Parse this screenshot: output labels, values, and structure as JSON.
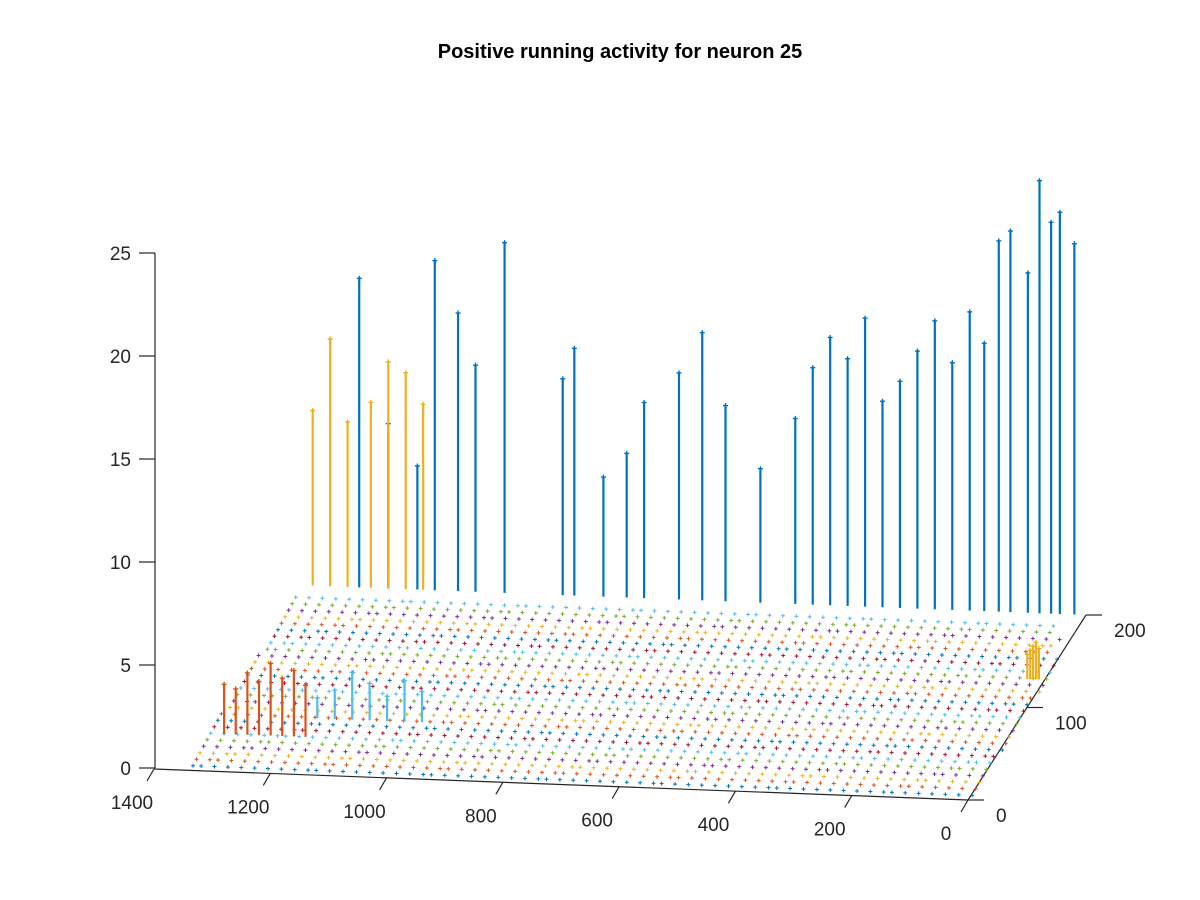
{
  "chart_data": {
    "type": "3d-stem",
    "title": "Positive running activity for neuron 25",
    "xlabel": "",
    "ylabel": "",
    "zlabel": "",
    "x_range": [
      0,
      1400
    ],
    "y_range": [
      0,
      200
    ],
    "z_range": [
      0,
      25
    ],
    "x_ticks": [
      0,
      200,
      400,
      600,
      800,
      1000,
      1200,
      1400
    ],
    "y_ticks": [
      0,
      100,
      200
    ],
    "z_ticks": [
      0,
      5,
      10,
      15,
      20,
      25
    ],
    "grid": false,
    "legend": "none",
    "colors": [
      "#0072BD",
      "#D95319",
      "#EDB120",
      "#7E2F8E",
      "#77AC30",
      "#4DBEEE",
      "#A2142F"
    ],
    "series": [
      {
        "color_index": 0,
        "y": 200,
        "x": [
          20,
          45,
          60,
          80,
          100,
          130,
          150,
          175,
          200,
          230,
          260,
          290,
          320,
          350,
          380,
          410,
          440,
          470,
          500,
          560,
          620,
          660,
          700,
          760,
          790,
          830,
          880,
          900,
          1000,
          1050,
          1080,
          1120,
          1150,
          1200,
          1250
        ],
        "z": [
          18,
          19.5,
          19,
          21,
          16.5,
          18.5,
          18,
          13,
          14.5,
          12,
          14,
          12.5,
          11,
          10,
          14,
          12,
          13,
          11.5,
          9,
          6.5,
          9.5,
          13,
          11,
          9.5,
          7,
          5.8,
          12,
          10.5,
          17,
          11,
          13.5,
          16,
          6,
          8,
          15
        ]
      },
      {
        "color_index": 2,
        "y": 200,
        "x": [
          1140,
          1170,
          1200,
          1230,
          1270,
          1300,
          1330
        ],
        "z": [
          9,
          10.5,
          11,
          9,
          8,
          12,
          8.5
        ]
      },
      {
        "color_index": 2,
        "y": 130,
        "x": [
          10,
          15,
          20,
          25,
          30
        ],
        "z": [
          1.5,
          1.8,
          1.6,
          1.4,
          1.2
        ]
      },
      {
        "color_index": 1,
        "y": 40,
        "x": [
          1180,
          1200,
          1220,
          1240,
          1260,
          1280,
          1300,
          1320
        ],
        "z": [
          2.5,
          3.2,
          2.8,
          3.5,
          2.6,
          3,
          2.2,
          2.4
        ]
      },
      {
        "color_index": 5,
        "y": 60,
        "x": [
          1000,
          1030,
          1060,
          1090,
          1120,
          1150,
          1180
        ],
        "z": [
          1.5,
          2,
          1.2,
          1.8,
          2.3,
          1.4,
          1
        ]
      }
    ]
  }
}
